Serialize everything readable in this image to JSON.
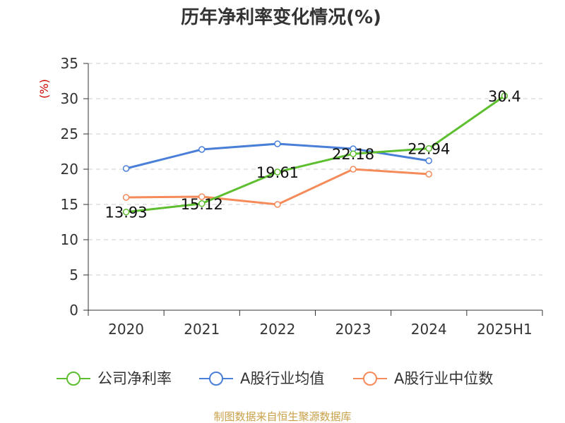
{
  "chart_data": {
    "type": "line",
    "title": "历年净利率变化情况(%)",
    "ylabel": "(%)",
    "xlabel": "",
    "categories": [
      "2020",
      "2021",
      "2022",
      "2023",
      "2024",
      "2025H1"
    ],
    "ylim": [
      0,
      35
    ],
    "yticks": [
      0,
      5,
      10,
      15,
      20,
      25,
      30,
      35
    ],
    "grid": true,
    "legend_position": "bottom",
    "series": [
      {
        "name": "公司净利率",
        "color": "#5dbf2f",
        "values": [
          13.93,
          15.12,
          19.61,
          22.18,
          22.94,
          30.4
        ],
        "labels": [
          "13.93",
          "15.12",
          "19.61",
          "22.18",
          "22.94",
          "30.4"
        ]
      },
      {
        "name": "A股行业均值",
        "color": "#4a7fd8",
        "values": [
          20.1,
          22.8,
          23.6,
          22.9,
          21.2,
          null
        ]
      },
      {
        "name": "A股行业中位数",
        "color": "#f58b5a",
        "values": [
          16.0,
          16.1,
          15.0,
          20.0,
          19.3,
          null
        ]
      }
    ]
  },
  "colors": {
    "unit": "#cc0000",
    "source": "#c8a04a",
    "grid": "#cccccc",
    "axis": "#333333"
  },
  "source": "制图数据来自恒生聚源数据库"
}
